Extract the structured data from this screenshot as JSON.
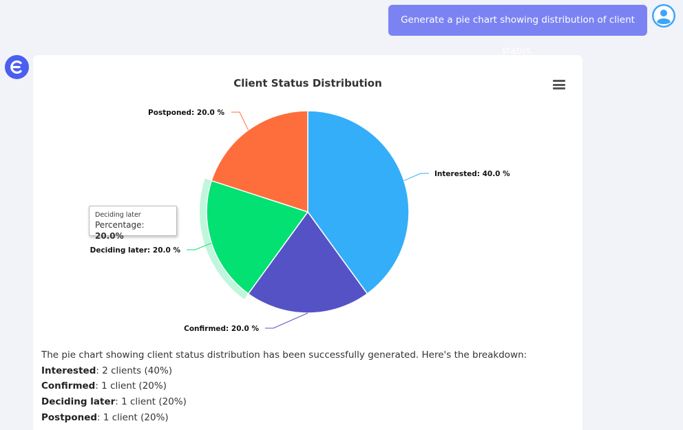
{
  "user_message": "Generate a pie chart showing distribution of client status.",
  "colors": {
    "user_bubble": "#7b83f3",
    "bot_avatar": "#4a5ef0",
    "user_avatar": "#3ba6f7"
  },
  "chart_data": {
    "type": "pie",
    "title": "Client Status Distribution",
    "slices": [
      {
        "name": "Interested",
        "value": 40.0,
        "label": "Interested: 40.0 %",
        "color": "#34aef8"
      },
      {
        "name": "Confirmed",
        "value": 20.0,
        "label": "Confirmed: 20.0 %",
        "color": "#5552c6"
      },
      {
        "name": "Deciding later",
        "value": 20.0,
        "label": "Deciding later: 20.0 %",
        "color": "#04e173"
      },
      {
        "name": "Postponed",
        "value": 20.0,
        "label": "Postponed: 20.0 %",
        "color": "#fe6e3c"
      }
    ],
    "hovered": "Deciding later"
  },
  "tooltip": {
    "name": "Deciding later",
    "key": "Percentage",
    "value": "20.0%"
  },
  "summary": {
    "intro": "The pie chart showing client status distribution has been successfully generated. Here's the breakdown:",
    "items": [
      {
        "name": "Interested",
        "text": ": 2 clients (40%)"
      },
      {
        "name": "Confirmed",
        "text": ": 1 client (20%)"
      },
      {
        "name": "Deciding later",
        "text": ": 1 client (20%)"
      },
      {
        "name": "Postponed",
        "text": ": 1 client (20%)"
      }
    ]
  }
}
